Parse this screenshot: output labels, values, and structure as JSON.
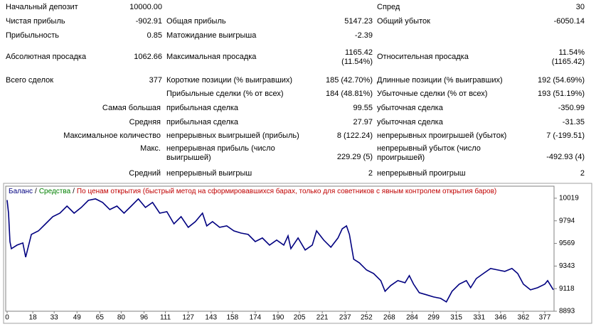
{
  "table": {
    "rows": [
      [
        "Начальный депозит",
        "10000.00",
        null,
        null,
        "Спред",
        "30"
      ],
      [
        "Чистая прибыль",
        "-902.91",
        "Общая прибыль",
        "5147.23",
        "Общий убыток",
        "-6050.14"
      ],
      [
        "Прибыльность",
        "0.85",
        "Матожидание выигрыша",
        "-2.39",
        null,
        null
      ],
      [
        "Абсолютная просадка",
        "1062.66",
        "Максимальная просадка",
        "1165.42\n(11.54%)",
        "Относительная просадка",
        "11.54%\n(1165.42)"
      ],
      [
        "Всего сделок",
        "377",
        "Короткие позиции (% выигравших)",
        "185 (42.70%)",
        "Длинные позиции (% выигравших)",
        "192 (54.69%)"
      ],
      [
        null,
        null,
        "Прибыльные сделки (% от всех)",
        "184 (48.81%)",
        "Убыточные сделки (% от всех)",
        "193 (51.19%)"
      ],
      [
        "Самая большая",
        null,
        "прибыльная сделка",
        "99.55",
        "убыточная сделка",
        "-350.99"
      ],
      [
        "Средняя",
        null,
        "прибыльная сделка",
        "27.97",
        "убыточная сделка",
        "-31.35"
      ],
      [
        "Максимальное количество",
        null,
        "непрерывных выигрышей (прибыль)",
        "8 (122.24)",
        "непрерывных проигрышей (убыток)",
        "7 (-199.51)"
      ],
      [
        "Макс.",
        null,
        "непрерывная прибыль (число\nвыигрышей)",
        "229.29 (5)",
        "непрерывный убыток (число\nпроигрышей)",
        "-492.93 (4)"
      ],
      [
        "Средний",
        null,
        "непрерывный выигрыш",
        "2",
        "непрерывный проигрыш",
        "2"
      ]
    ]
  },
  "chart_data": {
    "type": "line",
    "legend_separator": "/",
    "equity_label": {
      "text": "Средства",
      "color": "#008000"
    },
    "model_note": {
      "text": "По ценам открытия (быстрый метод на сформировавшихся барах, только для советников с явным контролем открытия баров)",
      "color": "#c00000"
    },
    "x": [
      0,
      1,
      2,
      3,
      7,
      11,
      13,
      17,
      22,
      27,
      32,
      37,
      42,
      47,
      52,
      57,
      62,
      67,
      72,
      77,
      82,
      87,
      92,
      97,
      102,
      107,
      112,
      117,
      122,
      127,
      132,
      137,
      140,
      144,
      149,
      154,
      159,
      164,
      169,
      174,
      179,
      184,
      189,
      194,
      197,
      199,
      204,
      209,
      214,
      217,
      222,
      227,
      232,
      235,
      238,
      240,
      243,
      247,
      252,
      257,
      262,
      265,
      269,
      274,
      279,
      282,
      285,
      289,
      294,
      299,
      304,
      308,
      312,
      317,
      322,
      325,
      329,
      334,
      339,
      344,
      349,
      354,
      358,
      362,
      367,
      372,
      377,
      379,
      383
    ],
    "series": [
      {
        "name": "Баланс",
        "color": "#000080",
        "values": [
          10000,
          9870,
          9587,
          9516,
          9552,
          9573,
          9432,
          9658,
          9694,
          9764,
          9835,
          9870,
          9941,
          9870,
          9927,
          9998,
          10012,
          9977,
          9906,
          9941,
          9870,
          9941,
          10012,
          9927,
          9977,
          9870,
          9885,
          9764,
          9835,
          9729,
          9786,
          9870,
          9743,
          9786,
          9729,
          9743,
          9694,
          9672,
          9658,
          9587,
          9623,
          9552,
          9602,
          9552,
          9644,
          9517,
          9623,
          9503,
          9552,
          9694,
          9602,
          9531,
          9623,
          9715,
          9743,
          9658,
          9411,
          9375,
          9304,
          9269,
          9198,
          9092,
          9149,
          9198,
          9177,
          9248,
          9163,
          9078,
          9057,
          9035,
          9021,
          8986,
          9092,
          9163,
          9198,
          9127,
          9219,
          9269,
          9319,
          9304,
          9290,
          9319,
          9269,
          9163,
          9106,
          9127,
          9163,
          9198,
          9107
        ]
      }
    ],
    "xlim": [
      0,
      383
    ],
    "xticks": [
      0,
      18,
      33,
      49,
      65,
      80,
      96,
      111,
      127,
      143,
      158,
      174,
      190,
      205,
      221,
      237,
      252,
      268,
      284,
      299,
      315,
      331,
      346,
      362,
      377
    ],
    "ylim": [
      8893,
      10139
    ],
    "yticks": [
      8893,
      9118,
      9343,
      9569,
      9794,
      10019
    ],
    "grid": false
  }
}
